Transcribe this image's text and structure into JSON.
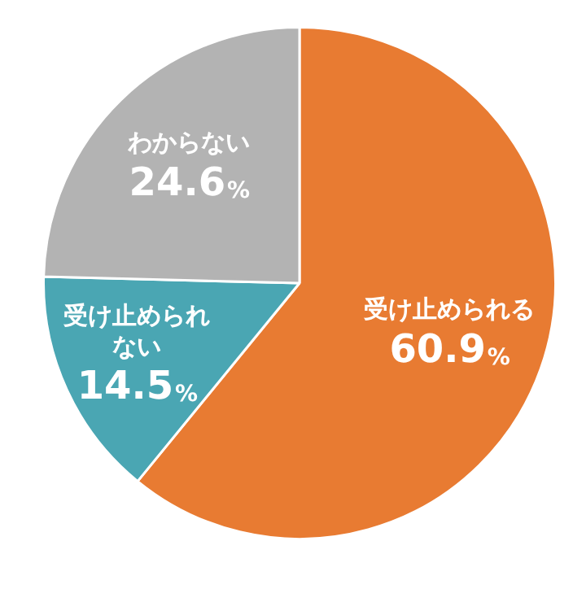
{
  "chart_data": {
    "type": "pie",
    "categories": [
      "受け止められる",
      "受け止められない",
      "わからない"
    ],
    "values": [
      60.9,
      14.5,
      24.6
    ],
    "colors": [
      "#e87b32",
      "#4aa6b3",
      "#b3b3b3"
    ],
    "value_labels": [
      "60.9%",
      "14.5%",
      "24.6%"
    ],
    "legend": false
  }
}
